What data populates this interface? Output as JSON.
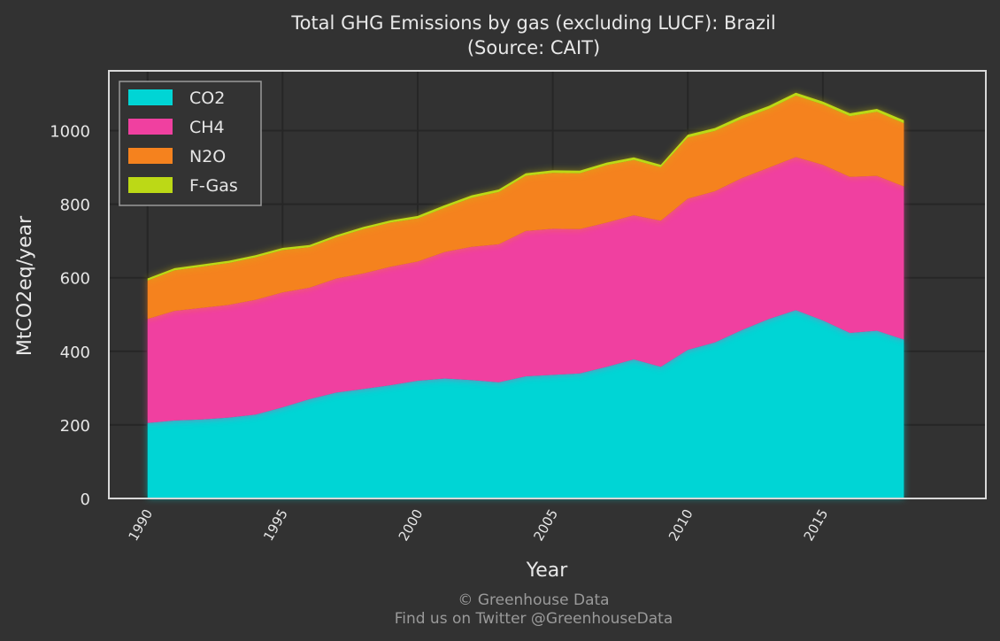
{
  "chart_data": {
    "type": "area",
    "stacked": true,
    "title": "Total GHG Emissions by gas (excluding LUCF): Brazil",
    "subtitle": "(Source: CAIT)",
    "xlabel": "Year",
    "ylabel": "MtCO2eq/year",
    "xlim": [
      1988.6,
      2021.0
    ],
    "ylim": [
      0,
      1160
    ],
    "yticks": [
      0,
      200,
      400,
      600,
      800,
      1000
    ],
    "xticks": [
      1990,
      1995,
      2000,
      2005,
      2010,
      2015
    ],
    "grid": true,
    "legend_position": "top-left",
    "x": [
      1990,
      1991,
      1992,
      1993,
      1994,
      1995,
      1996,
      1997,
      1998,
      1999,
      2000,
      2001,
      2002,
      2003,
      2004,
      2005,
      2006,
      2007,
      2008,
      2009,
      2010,
      2011,
      2012,
      2013,
      2014,
      2015,
      2016,
      2017,
      2018
    ],
    "series": [
      {
        "name": "CO2",
        "color": "#00d5d5",
        "values": [
          205,
          212,
          215,
          220,
          228,
          248,
          270,
          288,
          298,
          308,
          320,
          326,
          322,
          316,
          332,
          336,
          340,
          358,
          378,
          358,
          404,
          424,
          458,
          488,
          512,
          484,
          450,
          456,
          432
        ]
      },
      {
        "name": "CH4",
        "color": "#f040a0",
        "values": [
          283,
          298,
          303,
          306,
          312,
          312,
          303,
          310,
          314,
          322,
          324,
          344,
          362,
          375,
          395,
          397,
          392,
          392,
          392,
          397,
          411,
          411,
          413,
          411,
          416,
          423,
          424,
          421,
          416
        ]
      },
      {
        "name": "N2O",
        "color": "#f5821e",
        "values": [
          104,
          110,
          112,
          114,
          115,
          115,
          110,
          112,
          120,
          120,
          117,
          120,
          133,
          142,
          150,
          152,
          152,
          156,
          150,
          145,
          166,
          164,
          161,
          160,
          167,
          164,
          165,
          174,
          172
        ]
      },
      {
        "name": "F-Gas",
        "color": "#bcd916",
        "values": [
          6,
          6,
          6,
          6,
          6,
          6,
          6,
          6,
          6,
          6,
          7,
          7,
          7,
          7,
          7,
          7,
          7,
          7,
          7,
          7,
          8,
          8,
          8,
          8,
          8,
          8,
          8,
          8,
          8
        ]
      }
    ]
  },
  "footer": {
    "line1": "© Greenhouse Data",
    "line2": "Find us on Twitter @GreenhouseData"
  }
}
